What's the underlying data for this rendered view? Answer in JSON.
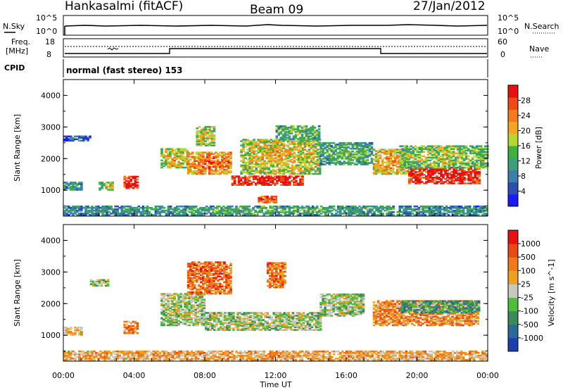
{
  "header": {
    "station": "Hankasalmi (fitACF)",
    "beam": "Beam 09",
    "date": "27/Jan/2012"
  },
  "top_panels": {
    "nsky_label": "N.Sky",
    "nsky_ticks": [
      "10^5",
      "10^0"
    ],
    "nsearch_label": "N.Search",
    "nsearch_ticks": [
      "10^5",
      "10^0"
    ],
    "freq_label_1": "Freq.",
    "freq_label_2": "[MHz]",
    "freq_ticks": [
      "18",
      "8"
    ],
    "nave_label": "Nave",
    "nave_ticks": [
      "60",
      "0"
    ],
    "cpid_label": "CPID",
    "cpid_text": "normal (fast stereo) 153"
  },
  "chart_data": [
    {
      "type": "heatmap",
      "title": "",
      "xlabel": "Time UT",
      "ylabel": "Slant Range [km]",
      "colorbar_label": "Power [dB]",
      "x_ticks": [
        "00:00",
        "04:00",
        "08:00",
        "12:00",
        "16:00",
        "20:00",
        "00:00"
      ],
      "y_ticks": [
        "1000",
        "2000",
        "3000",
        "4000"
      ],
      "colorbar_ticks": [
        "4",
        "8",
        "12",
        "16",
        "20",
        "24",
        "28"
      ],
      "colorbar_colors": [
        "#1a1aff",
        "#2a4fb0",
        "#3c7fa8",
        "#3d9e7a",
        "#3fb03c",
        "#b8d630",
        "#f5a51f",
        "#f57a1a",
        "#f04a14",
        "#e81010"
      ],
      "xlim_hours": [
        0,
        24
      ],
      "ylim_km": [
        180,
        4500
      ],
      "regions": [
        {
          "t": [
            0.0,
            1.0
          ],
          "r": [
            1000,
            1250
          ],
          "level": 0.3
        },
        {
          "t": [
            0.0,
            1.5
          ],
          "r": [
            2550,
            2700
          ],
          "level": 0.15
        },
        {
          "t": [
            2.0,
            2.8
          ],
          "r": [
            1000,
            1250
          ],
          "level": 0.45
        },
        {
          "t": [
            3.4,
            4.2
          ],
          "r": [
            1050,
            1450
          ],
          "level": 0.95
        },
        {
          "t": [
            5.5,
            7.0
          ],
          "r": [
            1700,
            2300
          ],
          "level": 0.55
        },
        {
          "t": [
            7.0,
            9.5
          ],
          "r": [
            1500,
            2200
          ],
          "level": 0.7
        },
        {
          "t": [
            7.5,
            8.5
          ],
          "r": [
            2400,
            3000
          ],
          "level": 0.5
        },
        {
          "t": [
            9.5,
            13.5
          ],
          "r": [
            1150,
            1450
          ],
          "level": 0.9
        },
        {
          "t": [
            10.0,
            14.5
          ],
          "r": [
            1500,
            2600
          ],
          "level": 0.55
        },
        {
          "t": [
            12.0,
            14.5
          ],
          "r": [
            2600,
            3050
          ],
          "level": 0.35
        },
        {
          "t": [
            11.0,
            12.0
          ],
          "r": [
            600,
            800
          ],
          "level": 0.8
        },
        {
          "t": [
            14.5,
            17.5
          ],
          "r": [
            1800,
            2500
          ],
          "level": 0.35
        },
        {
          "t": [
            17.5,
            19.5
          ],
          "r": [
            1500,
            2300
          ],
          "level": 0.6
        },
        {
          "t": [
            19.5,
            23.5
          ],
          "r": [
            1200,
            1700
          ],
          "level": 0.92
        },
        {
          "t": [
            19.0,
            24.0
          ],
          "r": [
            1700,
            2400
          ],
          "level": 0.45
        },
        {
          "t": [
            0.0,
            24.0
          ],
          "r": [
            200,
            500
          ],
          "level": 0.3
        }
      ]
    },
    {
      "type": "heatmap",
      "title": "",
      "xlabel": "Time UT",
      "ylabel": "Slant Range [km]",
      "colorbar_label": "Velocity [m s^-1]",
      "x_ticks": [
        "00:00",
        "04:00",
        "08:00",
        "12:00",
        "16:00",
        "20:00",
        "00:00"
      ],
      "y_ticks": [
        "1000",
        "2000",
        "3000",
        "4000"
      ],
      "colorbar_ticks": [
        "1000",
        "500",
        "100",
        "25",
        "-25",
        "-100",
        "-500",
        "-1000"
      ],
      "colorbar_colors": [
        "#1c3fb0",
        "#2a6a9a",
        "#3a8a5a",
        "#4fbf3a",
        "#c8c8c0",
        "#f0a020",
        "#f07a18",
        "#e84a14",
        "#e81010"
      ],
      "xlim_hours": [
        0,
        24
      ],
      "ylim_km": [
        180,
        4500
      ],
      "regions": [
        {
          "t": [
            0.0,
            1.0
          ],
          "r": [
            1000,
            1250
          ],
          "level": 0.6
        },
        {
          "t": [
            1.5,
            2.5
          ],
          "r": [
            2550,
            2750
          ],
          "level": 0.45
        },
        {
          "t": [
            3.4,
            4.2
          ],
          "r": [
            1050,
            1450
          ],
          "level": 0.7
        },
        {
          "t": [
            5.5,
            8.0
          ],
          "r": [
            1300,
            2300
          ],
          "level": 0.45
        },
        {
          "t": [
            7.0,
            9.5
          ],
          "r": [
            2300,
            3300
          ],
          "level": 0.75
        },
        {
          "t": [
            8.0,
            14.5
          ],
          "r": [
            1150,
            1700
          ],
          "level": 0.45
        },
        {
          "t": [
            11.5,
            12.5
          ],
          "r": [
            2500,
            3300
          ],
          "level": 0.75
        },
        {
          "t": [
            14.5,
            17.0
          ],
          "r": [
            1600,
            2300
          ],
          "level": 0.45
        },
        {
          "t": [
            17.5,
            23.5
          ],
          "r": [
            1300,
            2100
          ],
          "level": 0.7
        },
        {
          "t": [
            19.0,
            23.5
          ],
          "r": [
            1700,
            2100
          ],
          "level": 0.3
        },
        {
          "t": [
            0.0,
            24.0
          ],
          "r": [
            200,
            500
          ],
          "level": 0.62
        }
      ]
    }
  ]
}
